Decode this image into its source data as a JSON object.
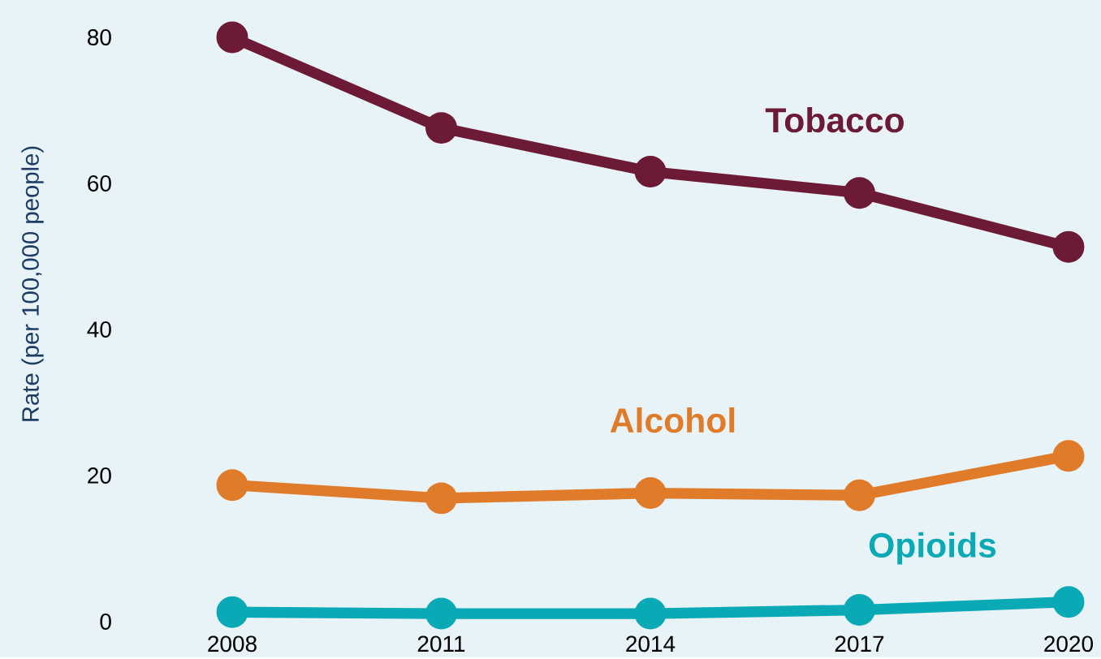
{
  "chart_data": {
    "type": "line",
    "ylabel": "Rate (per 100,000 people)",
    "x": [
      2008,
      2011,
      2014,
      2017,
      2020
    ],
    "xlim": [
      2008,
      2020
    ],
    "xticks": [
      2008,
      2011,
      2014,
      2017,
      2020
    ],
    "ylim": [
      0,
      80
    ],
    "yticks": [
      0,
      20,
      40,
      60,
      80
    ],
    "grid": false,
    "marker": "circle",
    "line_style": "solid",
    "series": [
      {
        "name": "Tobacco",
        "color": "#6d1a36",
        "values": [
          80,
          67.6,
          61.6,
          58.7,
          51.3
        ]
      },
      {
        "name": "Alcohol",
        "color": "#e07b2a",
        "values": [
          18.7,
          16.9,
          17.6,
          17.3,
          22.7
        ]
      },
      {
        "name": "Opioids",
        "color": "#0aa9b6",
        "values": [
          1.3,
          1.1,
          1.1,
          1.6,
          2.7
        ]
      }
    ]
  }
}
